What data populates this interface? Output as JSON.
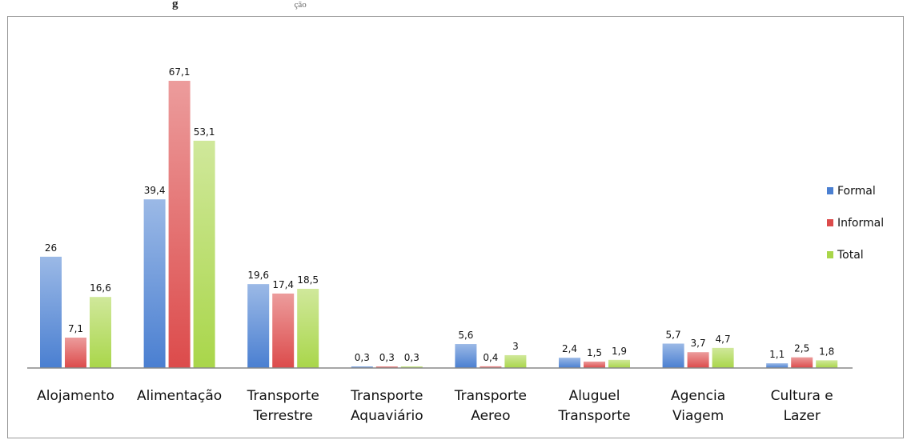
{
  "caption": {
    "bold": "g",
    "rest": "ção"
  },
  "chart_data": {
    "type": "bar",
    "categories": [
      [
        "Alojamento"
      ],
      [
        "Alimentação"
      ],
      [
        "Transporte",
        "Terrestre"
      ],
      [
        "Transporte",
        "Aquaviário"
      ],
      [
        "Transporte",
        "Aereo"
      ],
      [
        "Aluguel",
        "Transporte"
      ],
      [
        "Agencia",
        "Viagem"
      ],
      [
        "Cultura e",
        "Lazer"
      ]
    ],
    "series": [
      {
        "name": "Formal",
        "values": [
          26,
          39.4,
          19.6,
          0.3,
          5.6,
          2.4,
          5.7,
          1.1
        ],
        "labels": [
          "26",
          "39,4",
          "19,6",
          "0,3",
          "5,6",
          "2,4",
          "5,7",
          "1,1"
        ],
        "color": "#4a7fd1"
      },
      {
        "name": "Informal",
        "values": [
          7.1,
          67.1,
          17.4,
          0.3,
          0.4,
          1.5,
          3.7,
          2.5
        ],
        "labels": [
          "7,1",
          "67,1",
          "17,4",
          "0,3",
          "0,4",
          "1,5",
          "3,7",
          "2,5"
        ],
        "color": "#dc4b4b"
      },
      {
        "name": "Total",
        "values": [
          16.6,
          53.1,
          18.5,
          0.3,
          3,
          1.9,
          4.7,
          1.8
        ],
        "labels": [
          "16,6",
          "53,1",
          "18,5",
          "0,3",
          "3",
          "1,9",
          "4,7",
          "1,8"
        ],
        "color": "#a9d64a"
      }
    ],
    "ylim": [
      0,
      67.1
    ],
    "grid": false,
    "legend": "right"
  }
}
